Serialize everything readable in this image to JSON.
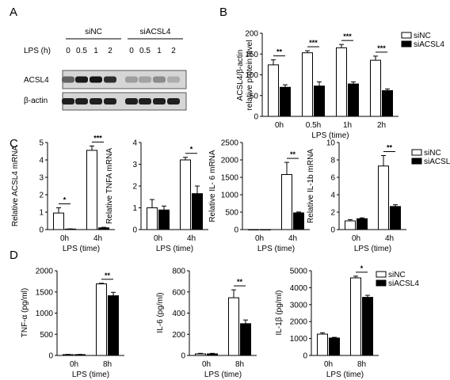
{
  "panel_letters": [
    "A",
    "B",
    "C",
    "D"
  ],
  "blot": {
    "group_labels": [
      "siNC",
      "siACSL4"
    ],
    "lps_label": "LPS (h)",
    "timepoints": [
      "0",
      "0.5",
      "1",
      "2",
      "0",
      "0.5",
      "1",
      "2"
    ],
    "rows": [
      {
        "label": "ACSL4",
        "intensity": [
          0.62,
          0.9,
          0.92,
          0.82,
          0.38,
          0.36,
          0.45,
          0.32
        ]
      },
      {
        "label": "β-actin",
        "intensity": [
          0.88,
          0.88,
          0.88,
          0.88,
          0.88,
          0.88,
          0.88,
          0.88
        ]
      }
    ]
  },
  "legend": {
    "series": [
      "siNC",
      "siACSL4"
    ]
  },
  "colors": {
    "siNC": "#ffffff",
    "siACSL4": "#000000",
    "stroke": "#000000"
  },
  "chart_data": [
    {
      "id": "B",
      "type": "bar",
      "ylabel": "ACSL4/β-actin relative protein level",
      "xlabel": "LPS (time)",
      "categories": [
        "0h",
        "0.5h",
        "1h",
        "2h"
      ],
      "ylim": [
        0,
        200
      ],
      "yticks": [
        "0",
        "50",
        "100",
        "150",
        "200"
      ],
      "series": [
        {
          "name": "siNC",
          "values": [
            124,
            153,
            165,
            135
          ],
          "err": [
            12,
            5,
            8,
            10
          ]
        },
        {
          "name": "siACSL4",
          "values": [
            70,
            73,
            78,
            62
          ],
          "err": [
            6,
            10,
            5,
            4
          ]
        }
      ],
      "significance": [
        "**",
        "***",
        "***",
        "***"
      ],
      "legend": "top-right"
    },
    {
      "id": "C1",
      "type": "bar",
      "ylabel": "Relative ACSL4 mRNA",
      "xlabel": "LPS (time)",
      "categories": [
        "0h",
        "4h"
      ],
      "ylim": [
        0,
        5
      ],
      "yticks": [
        "0",
        "1",
        "2",
        "3",
        "4",
        "5"
      ],
      "series": [
        {
          "name": "siNC",
          "values": [
            0.95,
            4.55
          ],
          "err": [
            0.3,
            0.25
          ]
        },
        {
          "name": "siACSL4",
          "values": [
            0.03,
            0.1
          ],
          "err": [
            0.01,
            0.03
          ]
        }
      ],
      "significance": [
        "*",
        "***"
      ]
    },
    {
      "id": "C2",
      "type": "bar",
      "ylabel": "Relative TNFA mRNA",
      "xlabel": "LPS (time)",
      "categories": [
        "0h",
        "4h"
      ],
      "ylim": [
        0,
        4
      ],
      "yticks": [
        "0",
        "1",
        "2",
        "3",
        "4"
      ],
      "series": [
        {
          "name": "siNC",
          "values": [
            1.0,
            3.2
          ],
          "err": [
            0.38,
            0.12
          ]
        },
        {
          "name": "siACSL4",
          "values": [
            0.9,
            1.65
          ],
          "err": [
            0.18,
            0.35
          ]
        }
      ],
      "significance": [
        "",
        "*"
      ]
    },
    {
      "id": "C3",
      "type": "bar",
      "ylabel": "Relative IL- 6 mRNA",
      "xlabel": "LPS (time)",
      "categories": [
        "0h",
        "4h"
      ],
      "ylim": [
        0,
        2500
      ],
      "yticks": [
        "0",
        "500",
        "1000",
        "1500",
        "2000",
        "2500"
      ],
      "series": [
        {
          "name": "siNC",
          "values": [
            1,
            1580
          ],
          "err": [
            0,
            350
          ]
        },
        {
          "name": "siACSL4",
          "values": [
            1,
            480
          ],
          "err": [
            0,
            25
          ]
        }
      ],
      "significance": [
        "",
        "**"
      ]
    },
    {
      "id": "C4",
      "type": "bar",
      "ylabel": "Relative IL-1b mRNA",
      "xlabel": "LPS (time)",
      "categories": [
        "0h",
        "4h"
      ],
      "ylim": [
        0,
        10
      ],
      "yticks": [
        "0",
        "2",
        "4",
        "6",
        "8",
        "10"
      ],
      "series": [
        {
          "name": "siNC",
          "values": [
            1.0,
            7.3
          ],
          "err": [
            0.15,
            1.2
          ]
        },
        {
          "name": "siACSL4",
          "values": [
            1.25,
            2.65
          ],
          "err": [
            0.1,
            0.2
          ]
        }
      ],
      "significance": [
        "",
        "**"
      ],
      "legend": "top-right"
    },
    {
      "id": "D1",
      "type": "bar",
      "ylabel": "TNF-α (pg/ml)",
      "xlabel": "LPS (time)",
      "categories": [
        "0h",
        "8h"
      ],
      "ylim": [
        0,
        2000
      ],
      "yticks": [
        "0",
        "500",
        "1000",
        "1500",
        "2000"
      ],
      "series": [
        {
          "name": "siNC",
          "values": [
            20,
            1690
          ],
          "err": [
            5,
            15
          ]
        },
        {
          "name": "siACSL4",
          "values": [
            20,
            1410
          ],
          "err": [
            5,
            80
          ]
        }
      ],
      "significance": [
        "",
        "**"
      ]
    },
    {
      "id": "D2",
      "type": "bar",
      "ylabel": "IL-6 (pg/ml)",
      "xlabel": "LPS (time)",
      "categories": [
        "0h",
        "8h"
      ],
      "ylim": [
        0,
        800
      ],
      "yticks": [
        "0",
        "200",
        "400",
        "600",
        "800"
      ],
      "series": [
        {
          "name": "siNC",
          "values": [
            15,
            545
          ],
          "err": [
            5,
            75
          ]
        },
        {
          "name": "siACSL4",
          "values": [
            15,
            300
          ],
          "err": [
            5,
            35
          ]
        }
      ],
      "significance": [
        "",
        "**"
      ]
    },
    {
      "id": "D3",
      "type": "bar",
      "ylabel": "IL-1β (pg/ml)",
      "xlabel": "LPS (time)",
      "categories": [
        "0h",
        "8h"
      ],
      "ylim": [
        0,
        5000
      ],
      "yticks": [
        "0",
        "1000",
        "2000",
        "3000",
        "4000",
        "5000"
      ],
      "series": [
        {
          "name": "siNC",
          "values": [
            1260,
            4580
          ],
          "err": [
            80,
            100
          ]
        },
        {
          "name": "siACSL4",
          "values": [
            1030,
            3430
          ],
          "err": [
            40,
            120
          ]
        }
      ],
      "significance": [
        "",
        "*"
      ],
      "legend": "top-right"
    }
  ]
}
